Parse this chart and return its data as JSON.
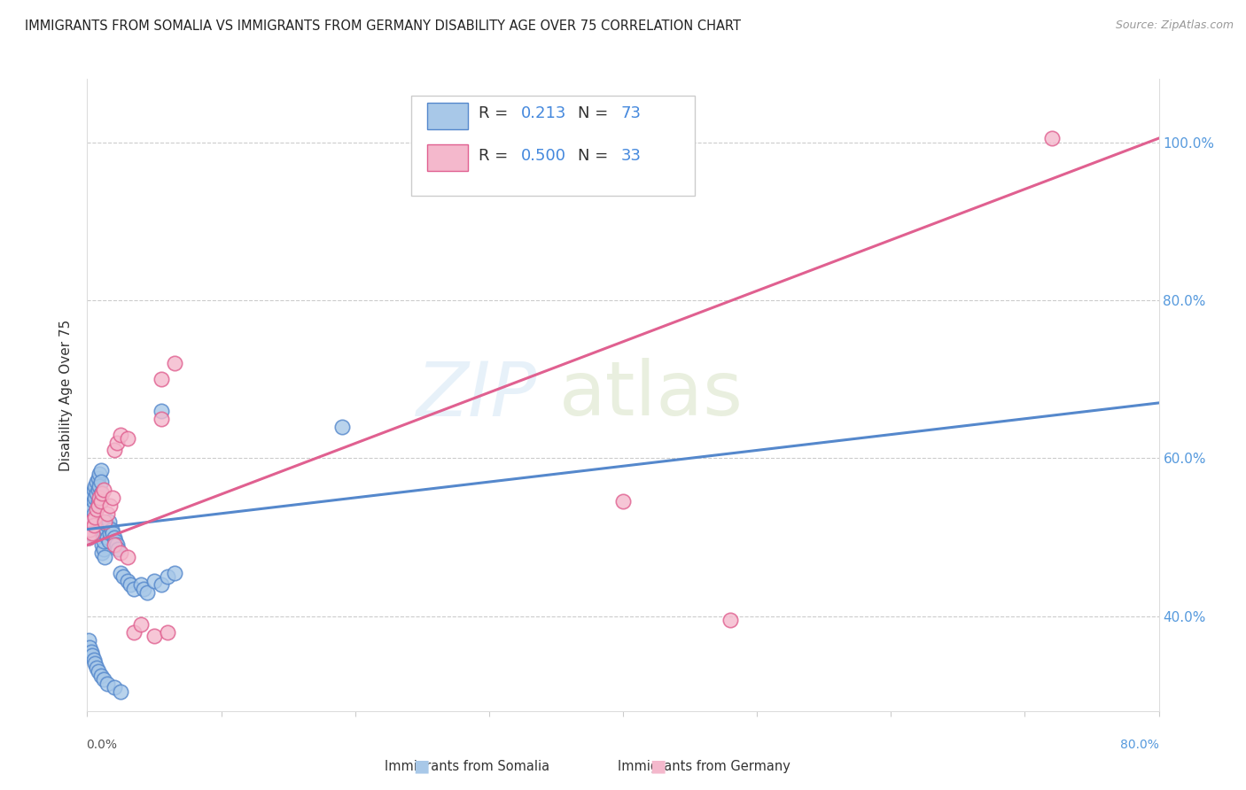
{
  "title": "IMMIGRANTS FROM SOMALIA VS IMMIGRANTS FROM GERMANY DISABILITY AGE OVER 75 CORRELATION CHART",
  "source": "Source: ZipAtlas.com",
  "ylabel": "Disability Age Over 75",
  "right_yticks": [
    "40.0%",
    "60.0%",
    "80.0%",
    "100.0%"
  ],
  "right_ytick_vals": [
    0.4,
    0.6,
    0.8,
    1.0
  ],
  "xlim": [
    0.0,
    0.8
  ],
  "ylim": [
    0.28,
    1.08
  ],
  "color_somalia": "#a8c8e8",
  "color_germany": "#f4b8cc",
  "color_somalia_edge": "#5588cc",
  "color_germany_edge": "#e06090",
  "color_somalia_line": "#5588cc",
  "color_germany_line": "#e06090",
  "watermark_text": "ZIP",
  "watermark_text2": "atlas",
  "somalia_x": [
    0.001,
    0.001,
    0.001,
    0.002,
    0.002,
    0.002,
    0.003,
    0.003,
    0.003,
    0.004,
    0.004,
    0.004,
    0.005,
    0.005,
    0.005,
    0.006,
    0.006,
    0.007,
    0.007,
    0.008,
    0.008,
    0.008,
    0.009,
    0.009,
    0.01,
    0.01,
    0.01,
    0.011,
    0.011,
    0.012,
    0.012,
    0.013,
    0.013,
    0.014,
    0.015,
    0.015,
    0.016,
    0.016,
    0.017,
    0.018,
    0.019,
    0.02,
    0.021,
    0.022,
    0.023,
    0.025,
    0.027,
    0.03,
    0.032,
    0.035,
    0.04,
    0.042,
    0.045,
    0.05,
    0.055,
    0.06,
    0.065,
    0.001,
    0.002,
    0.003,
    0.004,
    0.005,
    0.006,
    0.007,
    0.008,
    0.01,
    0.012,
    0.015,
    0.02,
    0.025,
    0.055,
    0.19
  ],
  "somalia_y": [
    0.52,
    0.51,
    0.5,
    0.53,
    0.515,
    0.505,
    0.54,
    0.525,
    0.51,
    0.555,
    0.535,
    0.52,
    0.56,
    0.545,
    0.53,
    0.565,
    0.55,
    0.57,
    0.555,
    0.575,
    0.56,
    0.545,
    0.58,
    0.565,
    0.585,
    0.57,
    0.555,
    0.48,
    0.49,
    0.485,
    0.495,
    0.475,
    0.505,
    0.51,
    0.515,
    0.5,
    0.495,
    0.52,
    0.505,
    0.51,
    0.505,
    0.5,
    0.495,
    0.49,
    0.485,
    0.455,
    0.45,
    0.445,
    0.44,
    0.435,
    0.44,
    0.435,
    0.43,
    0.445,
    0.44,
    0.45,
    0.455,
    0.37,
    0.36,
    0.355,
    0.35,
    0.345,
    0.34,
    0.335,
    0.33,
    0.325,
    0.32,
    0.315,
    0.31,
    0.305,
    0.66,
    0.64
  ],
  "germany_x": [
    0.001,
    0.002,
    0.003,
    0.004,
    0.005,
    0.006,
    0.007,
    0.008,
    0.009,
    0.01,
    0.011,
    0.012,
    0.013,
    0.015,
    0.017,
    0.019,
    0.02,
    0.022,
    0.025,
    0.03,
    0.035,
    0.04,
    0.05,
    0.06,
    0.055,
    0.055,
    0.065,
    0.02,
    0.025,
    0.03,
    0.4,
    0.48,
    0.72
  ],
  "germany_y": [
    0.5,
    0.51,
    0.52,
    0.505,
    0.515,
    0.525,
    0.535,
    0.54,
    0.55,
    0.545,
    0.555,
    0.56,
    0.52,
    0.53,
    0.54,
    0.55,
    0.61,
    0.62,
    0.63,
    0.625,
    0.38,
    0.39,
    0.375,
    0.38,
    0.65,
    0.7,
    0.72,
    0.49,
    0.48,
    0.475,
    0.545,
    0.395,
    1.005
  ],
  "somalia_trend_x": [
    0.0,
    0.8
  ],
  "somalia_trend_y": [
    0.51,
    0.67
  ],
  "germany_trend_x": [
    0.0,
    0.8
  ],
  "germany_trend_y": [
    0.49,
    1.005
  ]
}
